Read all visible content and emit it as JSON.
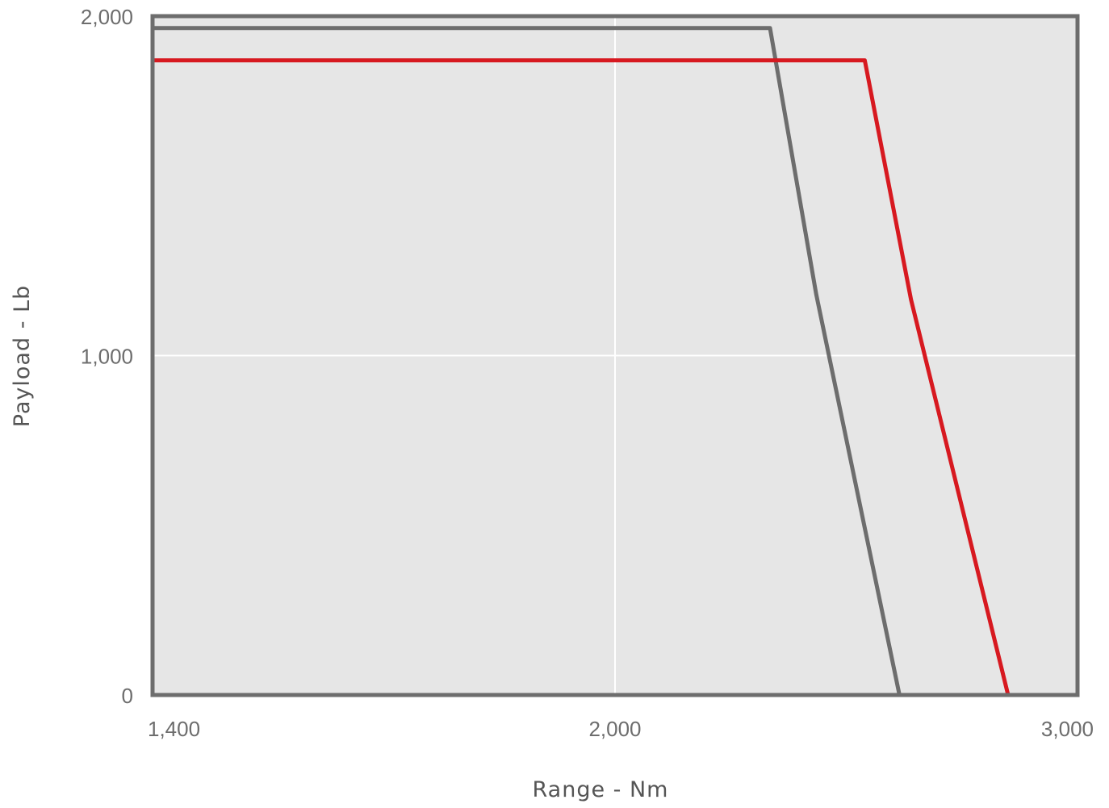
{
  "chart_data": {
    "type": "line",
    "xlabel": "Range - Nm",
    "ylabel": "Payload - Lb",
    "x_ticks": [
      1400,
      2000,
      3000
    ],
    "x_tick_labels": [
      "1,400",
      "2,000",
      "3,000"
    ],
    "y_ticks": [
      0,
      1000,
      2000
    ],
    "y_tick_labels": [
      "0",
      "1,000",
      "2,000"
    ],
    "ylim": [
      0,
      2000
    ],
    "grid": true,
    "plot_background": "#e6e6e6",
    "series": [
      {
        "color": "#6d6d6d",
        "points": [
          [
            1400,
            1965
          ],
          [
            2335,
            1965
          ],
          [
            2435,
            1180
          ],
          [
            2615,
            0
          ]
        ]
      },
      {
        "color": "#d71920",
        "points": [
          [
            1400,
            1870
          ],
          [
            2540,
            1870
          ],
          [
            2640,
            1165
          ],
          [
            2850,
            0
          ]
        ]
      }
    ]
  }
}
